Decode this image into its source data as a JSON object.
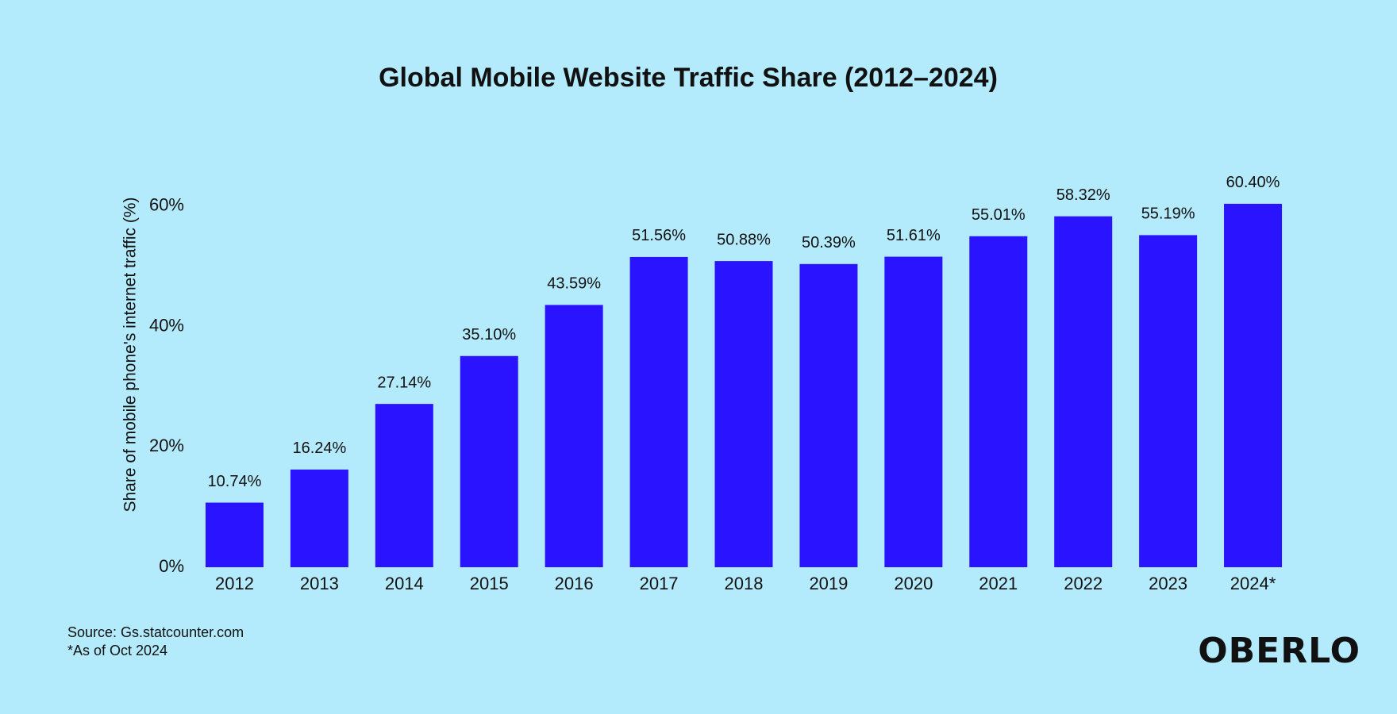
{
  "chart_data": {
    "type": "bar",
    "title": "Global Mobile Website Traffic Share (2012–2024)",
    "y_label": "Share of mobile phone's internet traffic (%)",
    "categories": [
      "2012",
      "2013",
      "2014",
      "2015",
      "2016",
      "2017",
      "2018",
      "2019",
      "2020",
      "2021",
      "2022",
      "2023",
      "2024*"
    ],
    "values": [
      10.74,
      16.24,
      27.14,
      35.1,
      43.59,
      51.56,
      50.88,
      50.39,
      51.61,
      55.01,
      58.32,
      55.19,
      60.4
    ],
    "value_labels": [
      "10.74%",
      "16.24%",
      "27.14%",
      "35.10%",
      "43.59%",
      "51.56%",
      "50.88%",
      "50.39%",
      "51.61%",
      "55.01%",
      "58.32%",
      "55.19%",
      "60.40%"
    ],
    "color": "#2a14ff",
    "ylim": [
      0,
      65
    ],
    "yticks": [
      {
        "value": 0,
        "label": "0%"
      },
      {
        "value": 20,
        "label": "20%"
      },
      {
        "value": 40,
        "label": "40%"
      },
      {
        "value": 60,
        "label": "60%"
      }
    ],
    "grid": false,
    "source": "Source: Gs.statcounter.com",
    "footnote": "*As of Oct 2024",
    "logo": "OBERLO"
  }
}
